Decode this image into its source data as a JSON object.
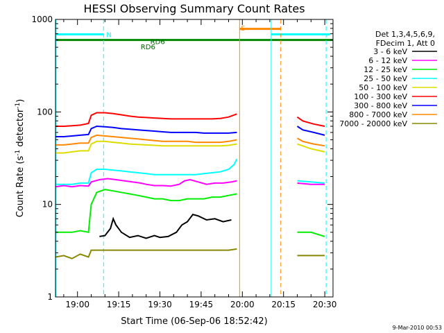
{
  "chart_data": {
    "type": "line",
    "title": "HESSI Observing Summary Count Rates",
    "xlabel": "Start Time (06-Sep-06 18:52:42)",
    "ylabel_main": "Count Rate (s",
    "ylabel_sup1": "-1",
    "ylabel_mid": " detector",
    "ylabel_sup2": "-1",
    "ylabel_end": ")",
    "yscale": "log",
    "ylim": [
      1,
      1000
    ],
    "xlim_min": [
      1132,
      1233
    ],
    "x_ticks": [
      {
        "min": 1140,
        "label": "19:00"
      },
      {
        "min": 1155,
        "label": "19:15"
      },
      {
        "min": 1170,
        "label": "19:30"
      },
      {
        "min": 1185,
        "label": "19:45"
      },
      {
        "min": 1200,
        "label": "20:00"
      },
      {
        "min": 1215,
        "label": "20:15"
      },
      {
        "min": 1230,
        "label": "20:30"
      }
    ],
    "y_ticks": [
      {
        "val": 1,
        "label": "1"
      },
      {
        "val": 10,
        "label": "10"
      },
      {
        "val": 100,
        "label": "100"
      },
      {
        "val": 1000,
        "label": "1000"
      }
    ],
    "legend_header": [
      "Det 1,3,4,5,6,9,",
      "FDecim 1, Att 0"
    ],
    "legend_position": "right",
    "series": [
      {
        "name": "3 - 6 keV",
        "color": "#000000",
        "points": [
          [
            1148,
            4.5
          ],
          [
            1150,
            4.6
          ],
          [
            1152,
            5.5
          ],
          [
            1153,
            7
          ],
          [
            1154,
            6
          ],
          [
            1156,
            5
          ],
          [
            1159,
            4.4
          ],
          [
            1162,
            4.6
          ],
          [
            1165,
            4.3
          ],
          [
            1168,
            4.6
          ],
          [
            1170,
            4.4
          ],
          [
            1173,
            4.5
          ],
          [
            1176,
            5
          ],
          [
            1178,
            6
          ],
          [
            1180,
            6.5
          ],
          [
            1182,
            7.8
          ],
          [
            1184,
            7.5
          ],
          [
            1187,
            6.8
          ],
          [
            1190,
            7
          ],
          [
            1193,
            6.5
          ],
          [
            1196,
            6.8
          ]
        ]
      },
      {
        "name": "6 - 12 keV",
        "color": "#ff00ff",
        "points": [
          [
            1132,
            15.5
          ],
          [
            1135,
            16
          ],
          [
            1138,
            15.5
          ],
          [
            1141,
            16
          ],
          [
            1144,
            15.8
          ],
          [
            1145,
            17.5
          ],
          [
            1148,
            18.5
          ],
          [
            1151,
            19
          ],
          [
            1154,
            18.5
          ],
          [
            1157,
            18
          ],
          [
            1160,
            17.5
          ],
          [
            1163,
            17
          ],
          [
            1165,
            16.5
          ],
          [
            1168,
            16
          ],
          [
            1171,
            16
          ],
          [
            1174,
            15.8
          ],
          [
            1177,
            16.5
          ],
          [
            1179,
            18
          ],
          [
            1181,
            18.5
          ],
          [
            1184,
            17.5
          ],
          [
            1187,
            16.5
          ],
          [
            1190,
            17
          ],
          [
            1193,
            17
          ],
          [
            1196,
            17.5
          ],
          [
            1198,
            18
          ],
          [
            1220,
            17
          ],
          [
            1225,
            16.5
          ],
          [
            1230,
            16.5
          ]
        ]
      },
      {
        "name": "12 - 25 keV",
        "color": "#00ee00",
        "points": [
          [
            1132,
            5
          ],
          [
            1135,
            5
          ],
          [
            1138,
            5
          ],
          [
            1141,
            5.2
          ],
          [
            1144,
            5
          ],
          [
            1145,
            10
          ],
          [
            1147,
            13.5
          ],
          [
            1150,
            14.5
          ],
          [
            1153,
            14
          ],
          [
            1156,
            13.5
          ],
          [
            1159,
            13
          ],
          [
            1162,
            12.5
          ],
          [
            1165,
            12
          ],
          [
            1168,
            11.5
          ],
          [
            1171,
            11.5
          ],
          [
            1174,
            11
          ],
          [
            1177,
            11
          ],
          [
            1180,
            11.5
          ],
          [
            1183,
            11.5
          ],
          [
            1186,
            11.5
          ],
          [
            1189,
            12
          ],
          [
            1192,
            12
          ],
          [
            1195,
            12.5
          ],
          [
            1198,
            13
          ],
          [
            1220,
            5
          ],
          [
            1225,
            5
          ],
          [
            1230,
            4.5
          ]
        ]
      },
      {
        "name": "25 - 50 keV",
        "color": "#00ffff",
        "points": [
          [
            1132,
            16.5
          ],
          [
            1135,
            16.5
          ],
          [
            1138,
            16.5
          ],
          [
            1141,
            17
          ],
          [
            1144,
            17
          ],
          [
            1145,
            22
          ],
          [
            1147,
            24
          ],
          [
            1150,
            24
          ],
          [
            1153,
            23.5
          ],
          [
            1156,
            23
          ],
          [
            1159,
            22.5
          ],
          [
            1162,
            22
          ],
          [
            1165,
            21.5
          ],
          [
            1168,
            21
          ],
          [
            1171,
            21
          ],
          [
            1174,
            21
          ],
          [
            1177,
            21
          ],
          [
            1180,
            21
          ],
          [
            1183,
            21
          ],
          [
            1186,
            21.5
          ],
          [
            1189,
            22
          ],
          [
            1192,
            22.5
          ],
          [
            1195,
            24
          ],
          [
            1197,
            27
          ],
          [
            1198,
            31
          ],
          [
            1220,
            18
          ],
          [
            1225,
            17.5
          ],
          [
            1230,
            17
          ]
        ]
      },
      {
        "name": "50 - 100 keV",
        "color": "#dddd00",
        "points": [
          [
            1132,
            36
          ],
          [
            1135,
            36
          ],
          [
            1138,
            37
          ],
          [
            1141,
            38
          ],
          [
            1144,
            38
          ],
          [
            1145,
            45
          ],
          [
            1147,
            48
          ],
          [
            1150,
            48
          ],
          [
            1153,
            47
          ],
          [
            1156,
            46
          ],
          [
            1159,
            45
          ],
          [
            1162,
            44.5
          ],
          [
            1165,
            44
          ],
          [
            1168,
            43.5
          ],
          [
            1171,
            43
          ],
          [
            1174,
            43
          ],
          [
            1177,
            43
          ],
          [
            1180,
            43
          ],
          [
            1183,
            43
          ],
          [
            1186,
            43
          ],
          [
            1189,
            43
          ],
          [
            1192,
            43
          ],
          [
            1195,
            43.5
          ],
          [
            1198,
            45
          ],
          [
            1220,
            45
          ],
          [
            1225,
            40
          ],
          [
            1230,
            37
          ]
        ]
      },
      {
        "name": "100 - 300 keV",
        "color": "#ff0000",
        "points": [
          [
            1132,
            70
          ],
          [
            1135,
            70
          ],
          [
            1138,
            71
          ],
          [
            1141,
            72
          ],
          [
            1144,
            75
          ],
          [
            1145,
            92
          ],
          [
            1147,
            98
          ],
          [
            1150,
            98
          ],
          [
            1153,
            96
          ],
          [
            1156,
            93
          ],
          [
            1159,
            90
          ],
          [
            1162,
            88
          ],
          [
            1165,
            87
          ],
          [
            1168,
            86
          ],
          [
            1171,
            85
          ],
          [
            1174,
            84
          ],
          [
            1177,
            84
          ],
          [
            1180,
            84
          ],
          [
            1183,
            84
          ],
          [
            1186,
            84
          ],
          [
            1189,
            84
          ],
          [
            1192,
            85
          ],
          [
            1195,
            88
          ],
          [
            1198,
            95
          ],
          [
            1220,
            88
          ],
          [
            1222,
            80
          ],
          [
            1226,
            74
          ],
          [
            1230,
            70
          ]
        ]
      },
      {
        "name": "300 - 800 keV",
        "color": "#0000ff",
        "points": [
          [
            1132,
            54
          ],
          [
            1135,
            54
          ],
          [
            1138,
            55
          ],
          [
            1141,
            56
          ],
          [
            1144,
            57
          ],
          [
            1145,
            66
          ],
          [
            1147,
            70
          ],
          [
            1150,
            69
          ],
          [
            1153,
            68
          ],
          [
            1156,
            66
          ],
          [
            1159,
            65
          ],
          [
            1162,
            64
          ],
          [
            1165,
            63
          ],
          [
            1168,
            62
          ],
          [
            1171,
            61
          ],
          [
            1174,
            60
          ],
          [
            1177,
            60
          ],
          [
            1180,
            60
          ],
          [
            1183,
            60
          ],
          [
            1186,
            59
          ],
          [
            1189,
            59
          ],
          [
            1192,
            59
          ],
          [
            1195,
            59
          ],
          [
            1198,
            60
          ],
          [
            1220,
            70
          ],
          [
            1222,
            64
          ],
          [
            1226,
            60
          ],
          [
            1230,
            56
          ]
        ]
      },
      {
        "name": "800 - 7000 keV",
        "color": "#ff8800",
        "points": [
          [
            1132,
            44
          ],
          [
            1135,
            44
          ],
          [
            1138,
            45
          ],
          [
            1141,
            46
          ],
          [
            1144,
            46
          ],
          [
            1145,
            53
          ],
          [
            1147,
            56
          ],
          [
            1150,
            55
          ],
          [
            1153,
            54
          ],
          [
            1156,
            53
          ],
          [
            1159,
            52
          ],
          [
            1162,
            51
          ],
          [
            1165,
            50
          ],
          [
            1168,
            49
          ],
          [
            1171,
            48
          ],
          [
            1174,
            48
          ],
          [
            1177,
            48
          ],
          [
            1180,
            48
          ],
          [
            1183,
            47
          ],
          [
            1186,
            47
          ],
          [
            1189,
            47
          ],
          [
            1192,
            47
          ],
          [
            1195,
            48
          ],
          [
            1198,
            50
          ],
          [
            1220,
            52
          ],
          [
            1222,
            48
          ],
          [
            1226,
            45
          ],
          [
            1230,
            43
          ]
        ]
      },
      {
        "name": "7000 - 20000 keV",
        "color": "#888800",
        "points": [
          [
            1132,
            2.7
          ],
          [
            1135,
            2.8
          ],
          [
            1138,
            2.6
          ],
          [
            1141,
            2.9
          ],
          [
            1144,
            2.7
          ],
          [
            1145,
            3.2
          ],
          [
            1150,
            3.2
          ],
          [
            1155,
            3.2
          ],
          [
            1160,
            3.2
          ],
          [
            1165,
            3.2
          ],
          [
            1170,
            3.2
          ],
          [
            1175,
            3.2
          ],
          [
            1180,
            3.2
          ],
          [
            1185,
            3.2
          ],
          [
            1190,
            3.2
          ],
          [
            1195,
            3.2
          ],
          [
            1198,
            3.3
          ],
          [
            1220,
            2.8
          ],
          [
            1225,
            2.8
          ],
          [
            1230,
            2.8
          ]
        ]
      }
    ],
    "annotations": [
      {
        "text": "N",
        "color": "#00ffff",
        "x": 1149.5,
        "y": 680
      },
      {
        "text": "S",
        "color": "#ff8800",
        "x": 1198.5,
        "y": 800
      },
      {
        "text": "RD6",
        "color": "#006600",
        "x": 1162,
        "y": 500
      },
      {
        "text": "RD6",
        "color": "#006600",
        "x": 1165.5,
        "y": 570
      }
    ],
    "flags": [
      {
        "kind": "hline",
        "y": 600,
        "x": [
          1132,
          1233
        ],
        "color": "#008800",
        "width": 3
      },
      {
        "kind": "hline",
        "y": 690,
        "x": [
          1132,
          1149.5
        ],
        "color": "#00ffff",
        "width": 3
      },
      {
        "kind": "hline",
        "y": 690,
        "x": [
          1210.5,
          1232
        ],
        "color": "#00ffff",
        "width": 3
      },
      {
        "kind": "hline",
        "y": 790,
        "x": [
          1199,
          1214
        ],
        "color": "#ff8800",
        "width": 3
      },
      {
        "kind": "vline",
        "x": 1149.5,
        "color": "#00ffff",
        "dash": true
      },
      {
        "kind": "vline",
        "x": 1230.5,
        "color": "#00ffff",
        "dash": true
      },
      {
        "kind": "vline",
        "x": 1214,
        "color": "#ff8800",
        "dash": true
      },
      {
        "kind": "vline",
        "x": 1199,
        "color": "#ff8800",
        "dash": false
      },
      {
        "kind": "vline",
        "x": 1210.5,
        "color": "#00ffff",
        "dash": false
      },
      {
        "kind": "vline",
        "x": 1132.2,
        "color": "#00ffff",
        "dash": false
      }
    ]
  },
  "footer_date": "9-Mar-2010 00:53"
}
